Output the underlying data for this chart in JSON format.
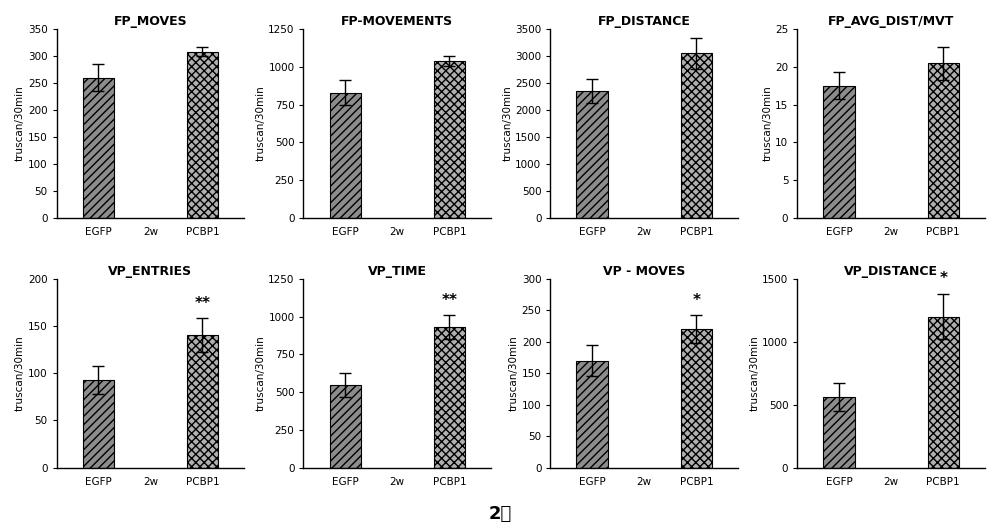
{
  "subplots": [
    {
      "title": "FP_MOVES",
      "ylim": [
        0,
        350
      ],
      "yticks": [
        0,
        50,
        100,
        150,
        200,
        250,
        300,
        350
      ],
      "egfp_val": 260,
      "egfp_err": 25,
      "pcbp1_val": 308,
      "pcbp1_err": 8,
      "significance": null
    },
    {
      "title": "FP-MOVEMENTS",
      "ylim": [
        0,
        1250
      ],
      "yticks": [
        0,
        250,
        500,
        750,
        1000,
        1250
      ],
      "egfp_val": 830,
      "egfp_err": 80,
      "pcbp1_val": 1040,
      "pcbp1_err": 35,
      "significance": null
    },
    {
      "title": "FP_DISTANCE",
      "ylim": [
        0,
        3500
      ],
      "yticks": [
        0,
        500,
        1000,
        1500,
        2000,
        2500,
        3000,
        3500
      ],
      "egfp_val": 2350,
      "egfp_err": 220,
      "pcbp1_val": 3050,
      "pcbp1_err": 280,
      "significance": null
    },
    {
      "title": "FP_AVG_DIST/MVT",
      "ylim": [
        0,
        25
      ],
      "yticks": [
        0,
        5,
        10,
        15,
        20,
        25
      ],
      "egfp_val": 17.5,
      "egfp_err": 1.8,
      "pcbp1_val": 20.5,
      "pcbp1_err": 2.2,
      "significance": null
    },
    {
      "title": "VP_ENTRIES",
      "ylim": [
        0,
        200
      ],
      "yticks": [
        0,
        50,
        100,
        150,
        200
      ],
      "egfp_val": 93,
      "egfp_err": 15,
      "pcbp1_val": 140,
      "pcbp1_err": 18,
      "significance": "**"
    },
    {
      "title": "VP_TIME",
      "ylim": [
        0,
        1250
      ],
      "yticks": [
        0,
        250,
        500,
        750,
        1000,
        1250
      ],
      "egfp_val": 545,
      "egfp_err": 80,
      "pcbp1_val": 930,
      "pcbp1_err": 80,
      "significance": "**"
    },
    {
      "title": "VP - MOVES",
      "ylim": [
        0,
        300
      ],
      "yticks": [
        0,
        50,
        100,
        150,
        200,
        250,
        300
      ],
      "egfp_val": 170,
      "egfp_err": 25,
      "pcbp1_val": 220,
      "pcbp1_err": 22,
      "significance": "*"
    },
    {
      "title": "VP_DISTANCE",
      "ylim": [
        0,
        1500
      ],
      "yticks": [
        0,
        500,
        1000,
        1500
      ],
      "egfp_val": 560,
      "egfp_err": 110,
      "pcbp1_val": 1200,
      "pcbp1_err": 180,
      "significance": "*"
    }
  ],
  "footer_label": "2周",
  "ylabel": "truscan/30min",
  "egfp_color": "#8c8c8c",
  "pcbp1_color": "#b0b0b0",
  "egfp_hatch": "////",
  "pcbp1_hatch": "xxxx",
  "bar_width": 0.6,
  "background_color": "#ffffff",
  "tick_label_fontsize": 7.5,
  "axis_label_fontsize": 7.5,
  "title_fontsize": 9,
  "sig_fontsize": 11,
  "footer_fontsize": 13
}
